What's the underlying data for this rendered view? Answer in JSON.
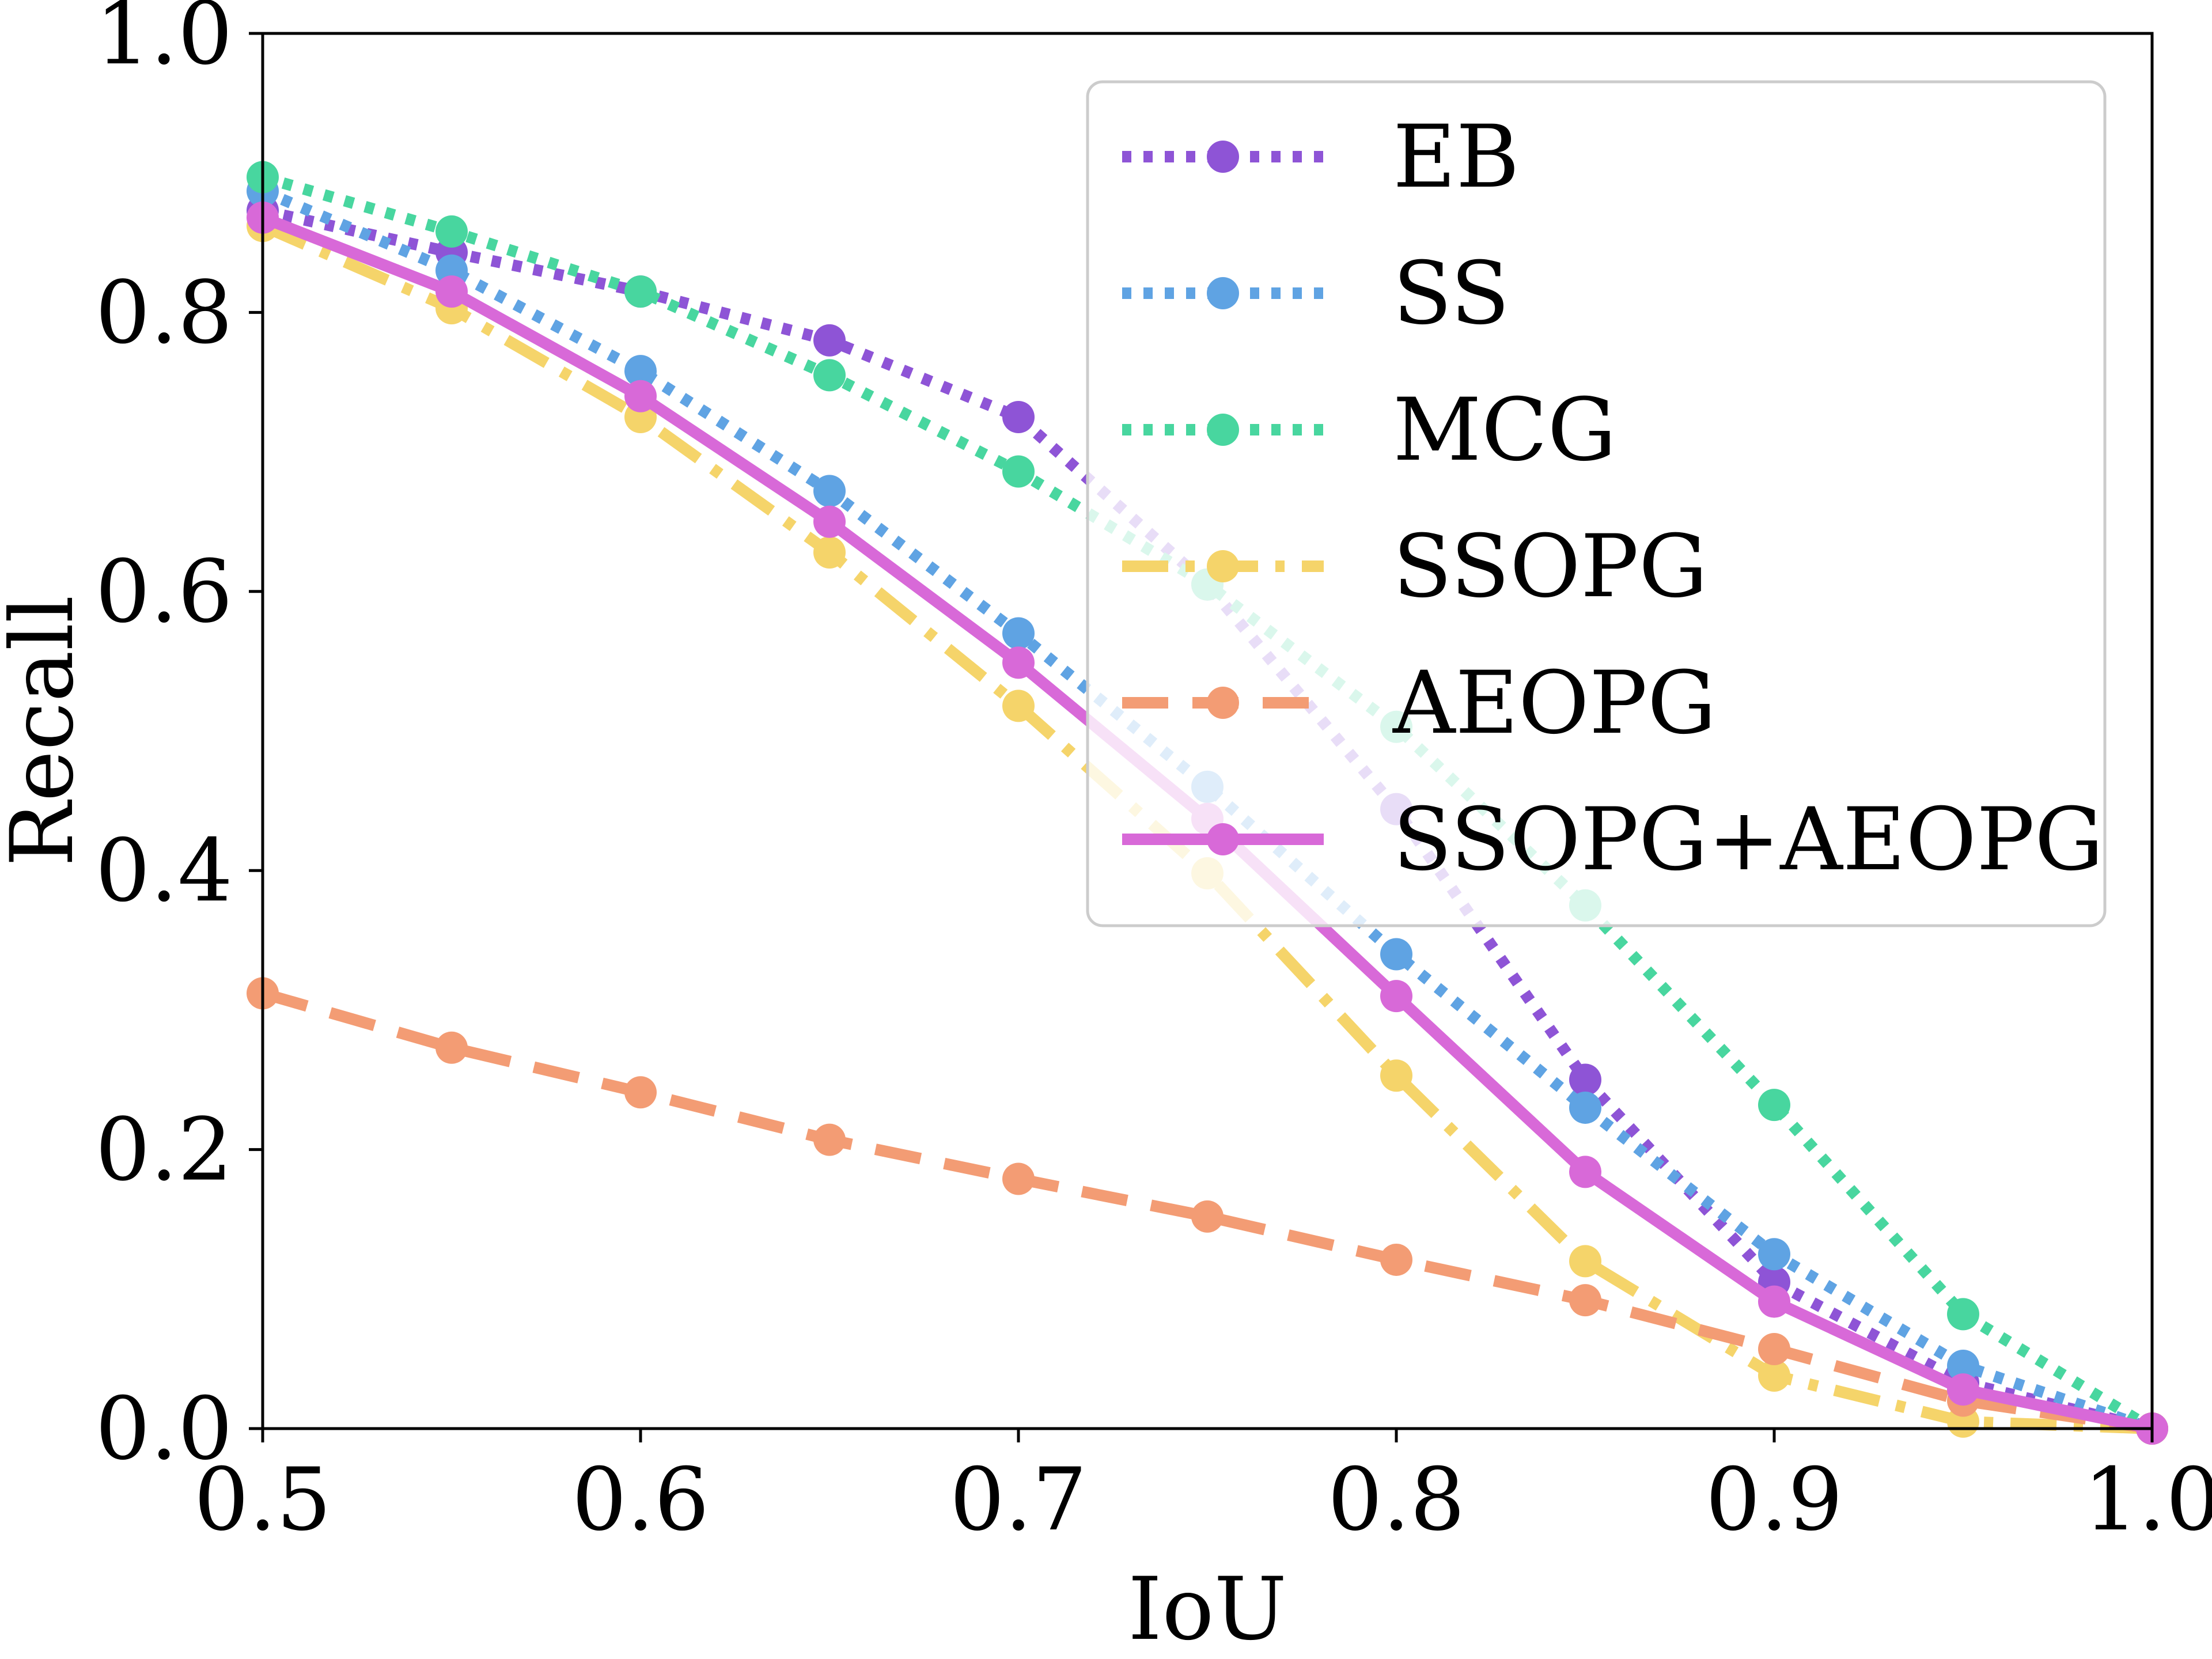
{
  "chart_data": {
    "type": "line",
    "title": "",
    "xlabel": "IoU",
    "ylabel": "Recall",
    "xlim": [
      0.5,
      1.0
    ],
    "ylim": [
      0.0,
      1.0
    ],
    "xticks": [
      "0.5",
      "0.6",
      "0.7",
      "0.8",
      "0.9",
      "1.0"
    ],
    "yticks": [
      "0.0",
      "0.2",
      "0.4",
      "0.6",
      "0.8",
      "1.0"
    ],
    "grid": false,
    "legend_position": "top-right",
    "x": [
      0.5,
      0.55,
      0.6,
      0.65,
      0.7,
      0.75,
      0.8,
      0.85,
      0.9,
      0.95,
      1.0
    ],
    "series": [
      {
        "name": "EB",
        "color": "#8e54d6",
        "style": "dotted",
        "values": [
          0.873,
          0.843,
          0.815,
          0.78,
          0.725,
          0.605,
          0.444,
          0.25,
          0.105,
          0.033,
          0.0
        ]
      },
      {
        "name": "SS",
        "color": "#5fa3e3",
        "style": "dotted",
        "values": [
          0.887,
          0.83,
          0.758,
          0.672,
          0.57,
          0.46,
          0.34,
          0.23,
          0.125,
          0.045,
          0.0
        ]
      },
      {
        "name": "MCG",
        "color": "#48d69f",
        "style": "dotted",
        "values": [
          0.897,
          0.858,
          0.815,
          0.755,
          0.686,
          0.605,
          0.503,
          0.375,
          0.232,
          0.082,
          0.0
        ]
      },
      {
        "name": "SSOPG",
        "color": "#f5d46a",
        "style": "dashdot",
        "values": [
          0.862,
          0.803,
          0.725,
          0.628,
          0.518,
          0.398,
          0.253,
          0.12,
          0.038,
          0.005,
          0.0
        ]
      },
      {
        "name": "AEOPG",
        "color": "#f39c74",
        "style": "dashed",
        "values": [
          0.312,
          0.273,
          0.241,
          0.207,
          0.179,
          0.152,
          0.121,
          0.092,
          0.057,
          0.02,
          0.0
        ]
      },
      {
        "name": "SSOPG+AEOPG",
        "color": "#d869d8",
        "style": "solid",
        "values": [
          0.868,
          0.815,
          0.74,
          0.65,
          0.549,
          0.437,
          0.31,
          0.184,
          0.091,
          0.028,
          0.0
        ]
      }
    ]
  }
}
